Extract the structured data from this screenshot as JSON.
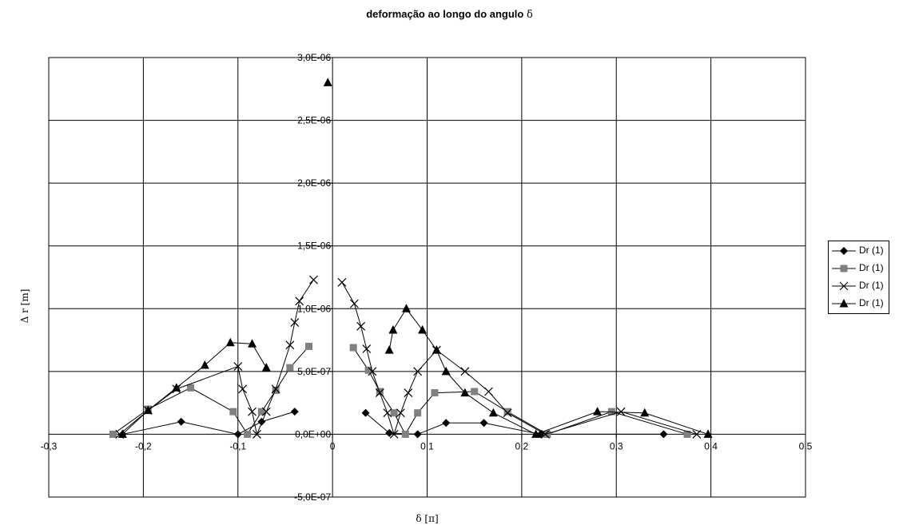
{
  "chart_data": {
    "type": "scatter",
    "title": "deformação ao longo do angulo",
    "title_symbol": "δ",
    "xlabel": "δ [π]",
    "ylabel": "Δ   r [m]",
    "xlim": [
      -0.3,
      0.5
    ],
    "ylim": [
      -5e-07,
      3e-06
    ],
    "x_ticks": [
      -0.3,
      -0.2,
      -0.1,
      0,
      0.1,
      0.2,
      0.3,
      0.4,
      0.5
    ],
    "x_tick_labels": [
      "-0,3",
      "-0,2",
      "-0,1",
      "0",
      "0,1",
      "0,2",
      "0,3",
      "0,4",
      "0,5"
    ],
    "y_ticks": [
      -5e-07,
      0,
      5e-07,
      1e-06,
      1.5e-06,
      2e-06,
      2.5e-06,
      3e-06
    ],
    "y_tick_labels": [
      "-5,0E-07",
      "0,0E+00",
      "5,0E-07",
      "1,0E-06",
      "1,5E-06",
      "2,0E-06",
      "2,5E-06",
      "3,0E-06"
    ],
    "grid": true,
    "legend_position": "right",
    "series": [
      {
        "name": "Dr (1)",
        "marker": "diamond",
        "color": "#000000",
        "segments": [
          [
            [
              -0.222,
              0
            ],
            [
              -0.16,
              1e-07
            ],
            [
              -0.1,
              0
            ],
            [
              -0.075,
              1e-07
            ],
            [
              -0.04,
              1.8e-07
            ]
          ],
          [
            [
              0.035,
              1.7e-07
            ],
            [
              0.06,
              1e-08
            ],
            [
              0.09,
              0
            ],
            [
              0.12,
              9e-08
            ],
            [
              0.16,
              9e-08
            ],
            [
              0.22,
              0
            ],
            [
              0.35,
              0
            ]
          ]
        ]
      },
      {
        "name": "Dr (1)",
        "marker": "square",
        "color": "#808080",
        "segments": [
          [
            [
              -0.232,
              0
            ],
            [
              -0.195,
              2e-07
            ],
            [
              -0.15,
              3.7e-07
            ],
            [
              -0.105,
              1.8e-07
            ],
            [
              -0.09,
              0
            ],
            [
              -0.075,
              1.8e-07
            ],
            [
              -0.06,
              3.5e-07
            ],
            [
              -0.045,
              5.3e-07
            ],
            [
              -0.025,
              7e-07
            ]
          ],
          [
            [
              0.022,
              6.9e-07
            ],
            [
              0.038,
              5.1e-07
            ],
            [
              0.05,
              3.4e-07
            ],
            [
              0.065,
              1.7e-07
            ],
            [
              0.077,
              0
            ],
            [
              0.09,
              1.7e-07
            ],
            [
              0.108,
              3.3e-07
            ],
            [
              0.15,
              3.4e-07
            ],
            [
              0.185,
              1.8e-07
            ],
            [
              0.227,
              0
            ],
            [
              0.295,
              1.8e-07
            ],
            [
              0.375,
              0
            ]
          ]
        ]
      },
      {
        "name": "Dr (1)",
        "marker": "x",
        "color": "#000000",
        "segments": [
          [
            [
              -0.225,
              0
            ],
            [
              -0.195,
              1.9e-07
            ],
            [
              -0.165,
              3.6e-07
            ],
            [
              -0.1,
              5.4e-07
            ],
            [
              -0.095,
              3.6e-07
            ],
            [
              -0.085,
              1.8e-07
            ],
            [
              -0.08,
              0
            ],
            [
              -0.07,
              1.8e-07
            ],
            [
              -0.06,
              3.6e-07
            ],
            [
              -0.045,
              7.1e-07
            ],
            [
              -0.04,
              8.9e-07
            ],
            [
              -0.035,
              1.06e-06
            ],
            [
              -0.02,
              1.23e-06
            ]
          ],
          [
            [
              0.01,
              1.21e-06
            ],
            [
              0.023,
              1.04e-06
            ],
            [
              0.03,
              8.6e-07
            ],
            [
              0.036,
              6.8e-07
            ],
            [
              0.042,
              5e-07
            ],
            [
              0.05,
              3.3e-07
            ],
            [
              0.058,
              1.7e-07
            ],
            [
              0.065,
              0
            ],
            [
              0.072,
              1.7e-07
            ],
            [
              0.08,
              3.3e-07
            ],
            [
              0.09,
              5e-07
            ],
            [
              0.11,
              6.7e-07
            ],
            [
              0.14,
              5e-07
            ],
            [
              0.165,
              3.4e-07
            ],
            [
              0.185,
              1.7e-07
            ],
            [
              0.225,
              0
            ],
            [
              0.305,
              1.8e-07
            ],
            [
              0.385,
              0
            ]
          ]
        ]
      },
      {
        "name": "Dr (1)",
        "marker": "triangle",
        "color": "#000000",
        "segments": [
          [
            [
              -0.222,
              0
            ],
            [
              -0.195,
              1.9e-07
            ],
            [
              -0.165,
              3.7e-07
            ],
            [
              -0.135,
              5.5e-07
            ],
            [
              -0.108,
              7.3e-07
            ],
            [
              -0.085,
              7.2e-07
            ],
            [
              -0.07,
              5.3e-07
            ]
          ],
          [
            [
              -0.005,
              2.8e-06
            ]
          ],
          [
            [
              0.06,
              6.7e-07
            ],
            [
              0.064,
              8.3e-07
            ],
            [
              0.078,
              1e-06
            ],
            [
              0.095,
              8.3e-07
            ],
            [
              0.11,
              6.7e-07
            ],
            [
              0.12,
              5e-07
            ],
            [
              0.14,
              3.3e-07
            ],
            [
              0.17,
              1.7e-07
            ],
            [
              0.215,
              0
            ],
            [
              0.28,
              1.8e-07
            ],
            [
              0.33,
              1.7e-07
            ],
            [
              0.397,
              0
            ]
          ]
        ]
      }
    ]
  }
}
